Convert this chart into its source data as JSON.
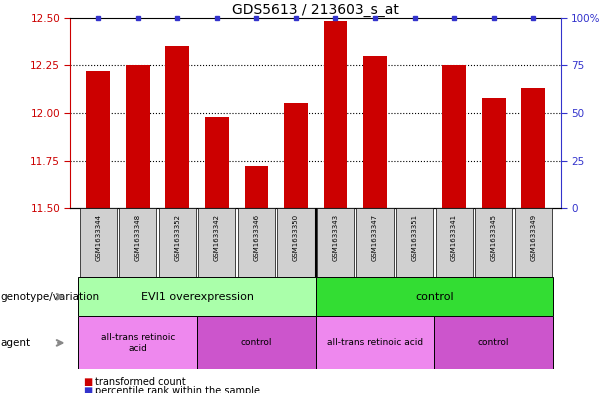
{
  "title": "GDS5613 / 213603_s_at",
  "samples": [
    "GSM1633344",
    "GSM1633348",
    "GSM1633352",
    "GSM1633342",
    "GSM1633346",
    "GSM1633350",
    "GSM1633343",
    "GSM1633347",
    "GSM1633351",
    "GSM1633341",
    "GSM1633345",
    "GSM1633349"
  ],
  "red_values": [
    12.22,
    12.25,
    12.35,
    11.98,
    11.72,
    12.05,
    12.48,
    12.3,
    11.5,
    12.25,
    12.08,
    12.13
  ],
  "blue_values_pct": [
    100,
    100,
    100,
    100,
    100,
    100,
    100,
    100,
    100,
    100,
    100,
    100
  ],
  "ylim_left": [
    11.5,
    12.5
  ],
  "ylim_right": [
    0,
    100
  ],
  "yticks_left": [
    11.5,
    11.75,
    12.0,
    12.25,
    12.5
  ],
  "yticks_right": [
    0,
    25,
    50,
    75,
    100
  ],
  "bar_color": "#cc0000",
  "dot_color": "#3333cc",
  "bar_bottom": 11.5,
  "genotype_groups": [
    {
      "label": "EVI1 overexpression",
      "start": 0,
      "end": 6,
      "color": "#aaffaa"
    },
    {
      "label": "control",
      "start": 6,
      "end": 12,
      "color": "#33dd33"
    }
  ],
  "agent_groups": [
    {
      "label": "all-trans retinoic\nacid",
      "start": 0,
      "end": 3,
      "color": "#ee88ee"
    },
    {
      "label": "control",
      "start": 3,
      "end": 6,
      "color": "#cc55cc"
    },
    {
      "label": "all-trans retinoic acid",
      "start": 6,
      "end": 9,
      "color": "#ee88ee"
    },
    {
      "label": "control",
      "start": 9,
      "end": 12,
      "color": "#cc55cc"
    }
  ],
  "legend_red": "transformed count",
  "legend_blue": "percentile rank within the sample",
  "label_genotype": "genotype/variation",
  "label_agent": "agent",
  "tick_color_left": "#cc0000",
  "tick_color_right": "#3333cc",
  "grid_color": "#000000",
  "sample_box_color": "#d0d0d0",
  "arrow_color": "#888888"
}
